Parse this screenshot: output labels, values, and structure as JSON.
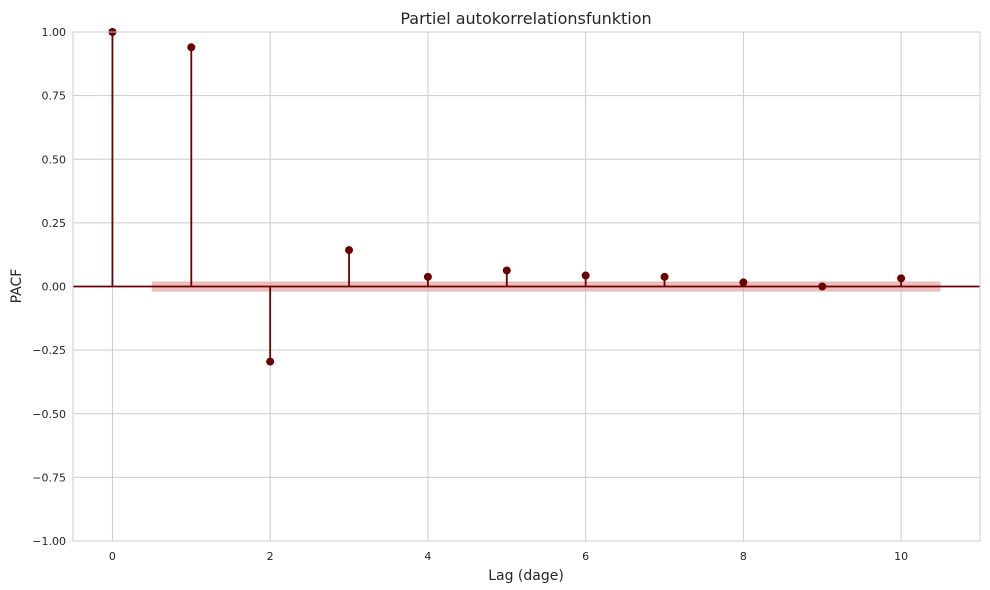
{
  "chart_data": {
    "type": "stem",
    "title": "Partiel autokorrelationsfunktion",
    "xlabel": "Lag (dage)",
    "ylabel": "PACF",
    "xlim": [
      -0.5,
      11
    ],
    "ylim": [
      -1.0,
      1.0
    ],
    "x_ticks": [
      0,
      2,
      4,
      6,
      8,
      10
    ],
    "y_ticks": [
      -1.0,
      -0.75,
      -0.5,
      -0.25,
      0.0,
      0.25,
      0.5,
      0.75,
      1.0
    ],
    "x_tick_labels": [
      "0",
      "2",
      "4",
      "6",
      "8",
      "10"
    ],
    "y_tick_labels": [
      "−1.00",
      "−0.75",
      "−0.50",
      "−0.25",
      "0.00",
      "0.25",
      "0.50",
      "0.75",
      "1.00"
    ],
    "grid": true,
    "series": [
      {
        "lags": [
          0,
          1,
          2,
          3,
          4,
          5,
          6,
          7,
          8,
          9,
          10
        ],
        "values": [
          1.0,
          0.94,
          -0.295,
          0.143,
          0.038,
          0.063,
          0.043,
          0.038,
          0.016,
          0.0,
          0.032
        ],
        "color": "#6b0000"
      }
    ],
    "confidence_band": {
      "x_range": [
        0.5,
        10.5
      ],
      "lower": -0.02,
      "upper": 0.02,
      "color": "#e8a8a8"
    }
  }
}
